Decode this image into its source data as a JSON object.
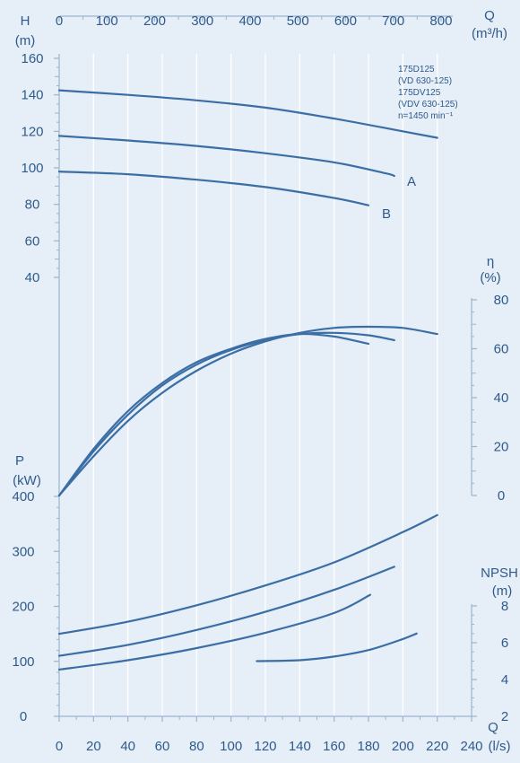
{
  "chart_data": {
    "type": "line",
    "title": "",
    "annotation": [
      "175D125",
      "(VD 630-125)",
      "175DV125",
      "(VDV 630-125)",
      "n=1450 min⁻¹"
    ],
    "x_axis": {
      "label": "Q",
      "unit": "(l/s)",
      "range": [
        0,
        240
      ],
      "ticks": [
        "0",
        "20",
        "40",
        "60",
        "80",
        "100",
        "120",
        "140",
        "160",
        "180",
        "200",
        "220",
        "240"
      ]
    },
    "x2_axis": {
      "label": "Q",
      "unit": "(m³/h)",
      "range": [
        0,
        864
      ],
      "ticks": [
        "0",
        "100",
        "200",
        "300",
        "400",
        "500",
        "600",
        "700",
        "800"
      ]
    },
    "head_axis": {
      "label": "H",
      "unit": "(m)",
      "range": [
        40,
        160
      ],
      "ticks": [
        "160",
        "140",
        "120",
        "100",
        "80",
        "60",
        "40"
      ]
    },
    "eff_axis": {
      "label": "η",
      "unit": "(%)",
      "range": [
        0,
        80
      ],
      "ticks": [
        "80",
        "60",
        "40",
        "20",
        "0"
      ]
    },
    "power_axis": {
      "label": "P",
      "unit": "(kW)",
      "range": [
        0,
        400
      ],
      "ticks": [
        "400",
        "300",
        "200",
        "100",
        "0"
      ]
    },
    "npsh_axis": {
      "label": "NPSH",
      "unit": "(m)",
      "range": [
        2,
        8
      ],
      "ticks": [
        "8",
        "6",
        "4",
        "2"
      ]
    },
    "curve_labels": [
      "A",
      "B"
    ],
    "series": [
      {
        "group": "head",
        "axis": "head",
        "x": [
          0,
          40,
          80,
          120,
          160,
          200,
          220
        ],
        "y": [
          142.5,
          140,
          137,
          133,
          127,
          120,
          116.5
        ]
      },
      {
        "group": "head",
        "axis": "head",
        "name": "A",
        "x": [
          0,
          40,
          80,
          120,
          160,
          190,
          195
        ],
        "y": [
          117.5,
          115,
          112,
          108,
          103,
          97,
          95.5
        ]
      },
      {
        "group": "head",
        "axis": "head",
        "name": "B",
        "x": [
          0,
          40,
          80,
          120,
          160,
          180
        ],
        "y": [
          98,
          96.5,
          93.5,
          89.5,
          83.5,
          79.5
        ]
      },
      {
        "group": "efficiency",
        "axis": "eff",
        "x": [
          0,
          20,
          40,
          60,
          80,
          100,
          120,
          140,
          160,
          180,
          200,
          220
        ],
        "y": [
          0,
          16,
          30.5,
          42,
          51,
          58,
          63,
          66.5,
          68.5,
          69,
          68.5,
          66
        ]
      },
      {
        "group": "efficiency",
        "axis": "eff",
        "x": [
          0,
          20,
          40,
          60,
          80,
          100,
          120,
          140,
          160,
          180,
          195
        ],
        "y": [
          0,
          18,
          33,
          45,
          53.5,
          59.5,
          63.5,
          66,
          66.5,
          65.5,
          63.5
        ]
      },
      {
        "group": "efficiency",
        "axis": "eff",
        "x": [
          0,
          20,
          40,
          60,
          80,
          100,
          120,
          140,
          160,
          180
        ],
        "y": [
          0,
          19,
          34.5,
          46,
          54.5,
          60,
          64,
          66,
          65,
          62
        ]
      },
      {
        "group": "power",
        "axis": "power",
        "x": [
          0,
          40,
          80,
          120,
          160,
          200,
          220
        ],
        "y": [
          150,
          172,
          202,
          238,
          280,
          335,
          366
        ]
      },
      {
        "group": "power",
        "axis": "power",
        "x": [
          0,
          40,
          80,
          120,
          160,
          195
        ],
        "y": [
          110,
          130,
          157,
          190,
          230,
          272
        ]
      },
      {
        "group": "power",
        "axis": "power",
        "x": [
          0,
          40,
          80,
          120,
          160,
          181
        ],
        "y": [
          85,
          102,
          124,
          152,
          188,
          221
        ]
      },
      {
        "group": "npsh",
        "axis": "npsh",
        "x": [
          115,
          140,
          160,
          180,
          200,
          208
        ],
        "y": [
          5,
          5.05,
          5.25,
          5.6,
          6.2,
          6.5
        ]
      }
    ]
  }
}
